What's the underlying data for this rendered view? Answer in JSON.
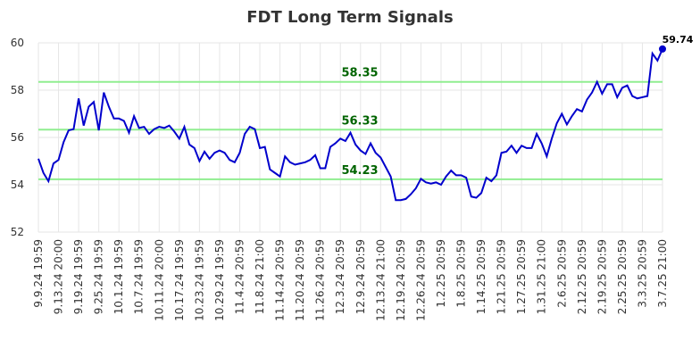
{
  "chart_data": {
    "type": "line",
    "title": "FDT Long Term Signals",
    "xlabel": "",
    "ylabel": "",
    "ylim": [
      52,
      60
    ],
    "yticks": [
      52,
      54,
      56,
      58,
      60
    ],
    "grid": true,
    "line_color": "#0000cc",
    "signal_color": "#90ee90",
    "signal_text_color": "#006400",
    "x_tick_labels": [
      "9.9.24 19:59",
      "9.13.24 20:00",
      "9.19.24 19:59",
      "9.25.24 19:59",
      "10.1.24 19:59",
      "10.7.24 19:59",
      "10.11.24 20:00",
      "10.17.24 19:59",
      "10.23.24 19:59",
      "10.29.24 19:59",
      "11.4.24 20:59",
      "11.8.24 21:00",
      "11.14.24 20:59",
      "11.20.24 20:59",
      "11.26.24 20:59",
      "12.3.24 20:59",
      "12.9.24 20:59",
      "12.13.24 21:00",
      "12.19.24 20:59",
      "12.26.24 20:59",
      "1.2.25 20:59",
      "1.8.25 20:59",
      "1.14.25 20:59",
      "1.21.25 20:59",
      "1.27.25 20:59",
      "1.31.25 21:00",
      "2.6.25 20:59",
      "2.12.25 20:59",
      "2.19.25 20:59",
      "2.25.25 20:59",
      "3.3.25 20:59",
      "3.7.25 21:00"
    ],
    "signal_lines": [
      {
        "value": 58.35,
        "label": "58.35"
      },
      {
        "value": 56.33,
        "label": "56.33"
      },
      {
        "value": 54.23,
        "label": "54.23"
      }
    ],
    "last_value_label": "59.74",
    "values": [
      55.1,
      54.5,
      54.15,
      54.9,
      55.05,
      55.8,
      56.3,
      56.35,
      57.65,
      56.5,
      57.3,
      57.5,
      56.3,
      57.9,
      57.3,
      56.8,
      56.8,
      56.7,
      56.2,
      56.9,
      56.4,
      56.45,
      56.15,
      56.35,
      56.45,
      56.4,
      56.5,
      56.25,
      55.95,
      56.45,
      55.7,
      55.55,
      55.0,
      55.4,
      55.1,
      55.35,
      55.45,
      55.35,
      55.05,
      54.95,
      55.35,
      56.15,
      56.45,
      56.35,
      55.55,
      55.6,
      54.65,
      54.5,
      54.35,
      55.2,
      54.95,
      54.85,
      54.9,
      54.95,
      55.05,
      55.25,
      54.7,
      54.7,
      55.6,
      55.75,
      55.95,
      55.85,
      56.2,
      55.7,
      55.45,
      55.3,
      55.75,
      55.35,
      55.15,
      54.75,
      54.35,
      53.35,
      53.35,
      53.4,
      53.6,
      53.85,
      54.25,
      54.1,
      54.05,
      54.1,
      54.0,
      54.35,
      54.6,
      54.4,
      54.4,
      54.3,
      53.5,
      53.45,
      53.65,
      54.3,
      54.15,
      54.4,
      55.35,
      55.4,
      55.65,
      55.35,
      55.65,
      55.55,
      55.55,
      56.15,
      55.75,
      55.2,
      55.95,
      56.6,
      57.0,
      56.55,
      56.9,
      57.2,
      57.1,
      57.6,
      57.9,
      58.35,
      57.85,
      58.25,
      58.25,
      57.7,
      58.1,
      58.2,
      57.75,
      57.65,
      57.7,
      57.75,
      59.55,
      59.25,
      59.74
    ]
  }
}
